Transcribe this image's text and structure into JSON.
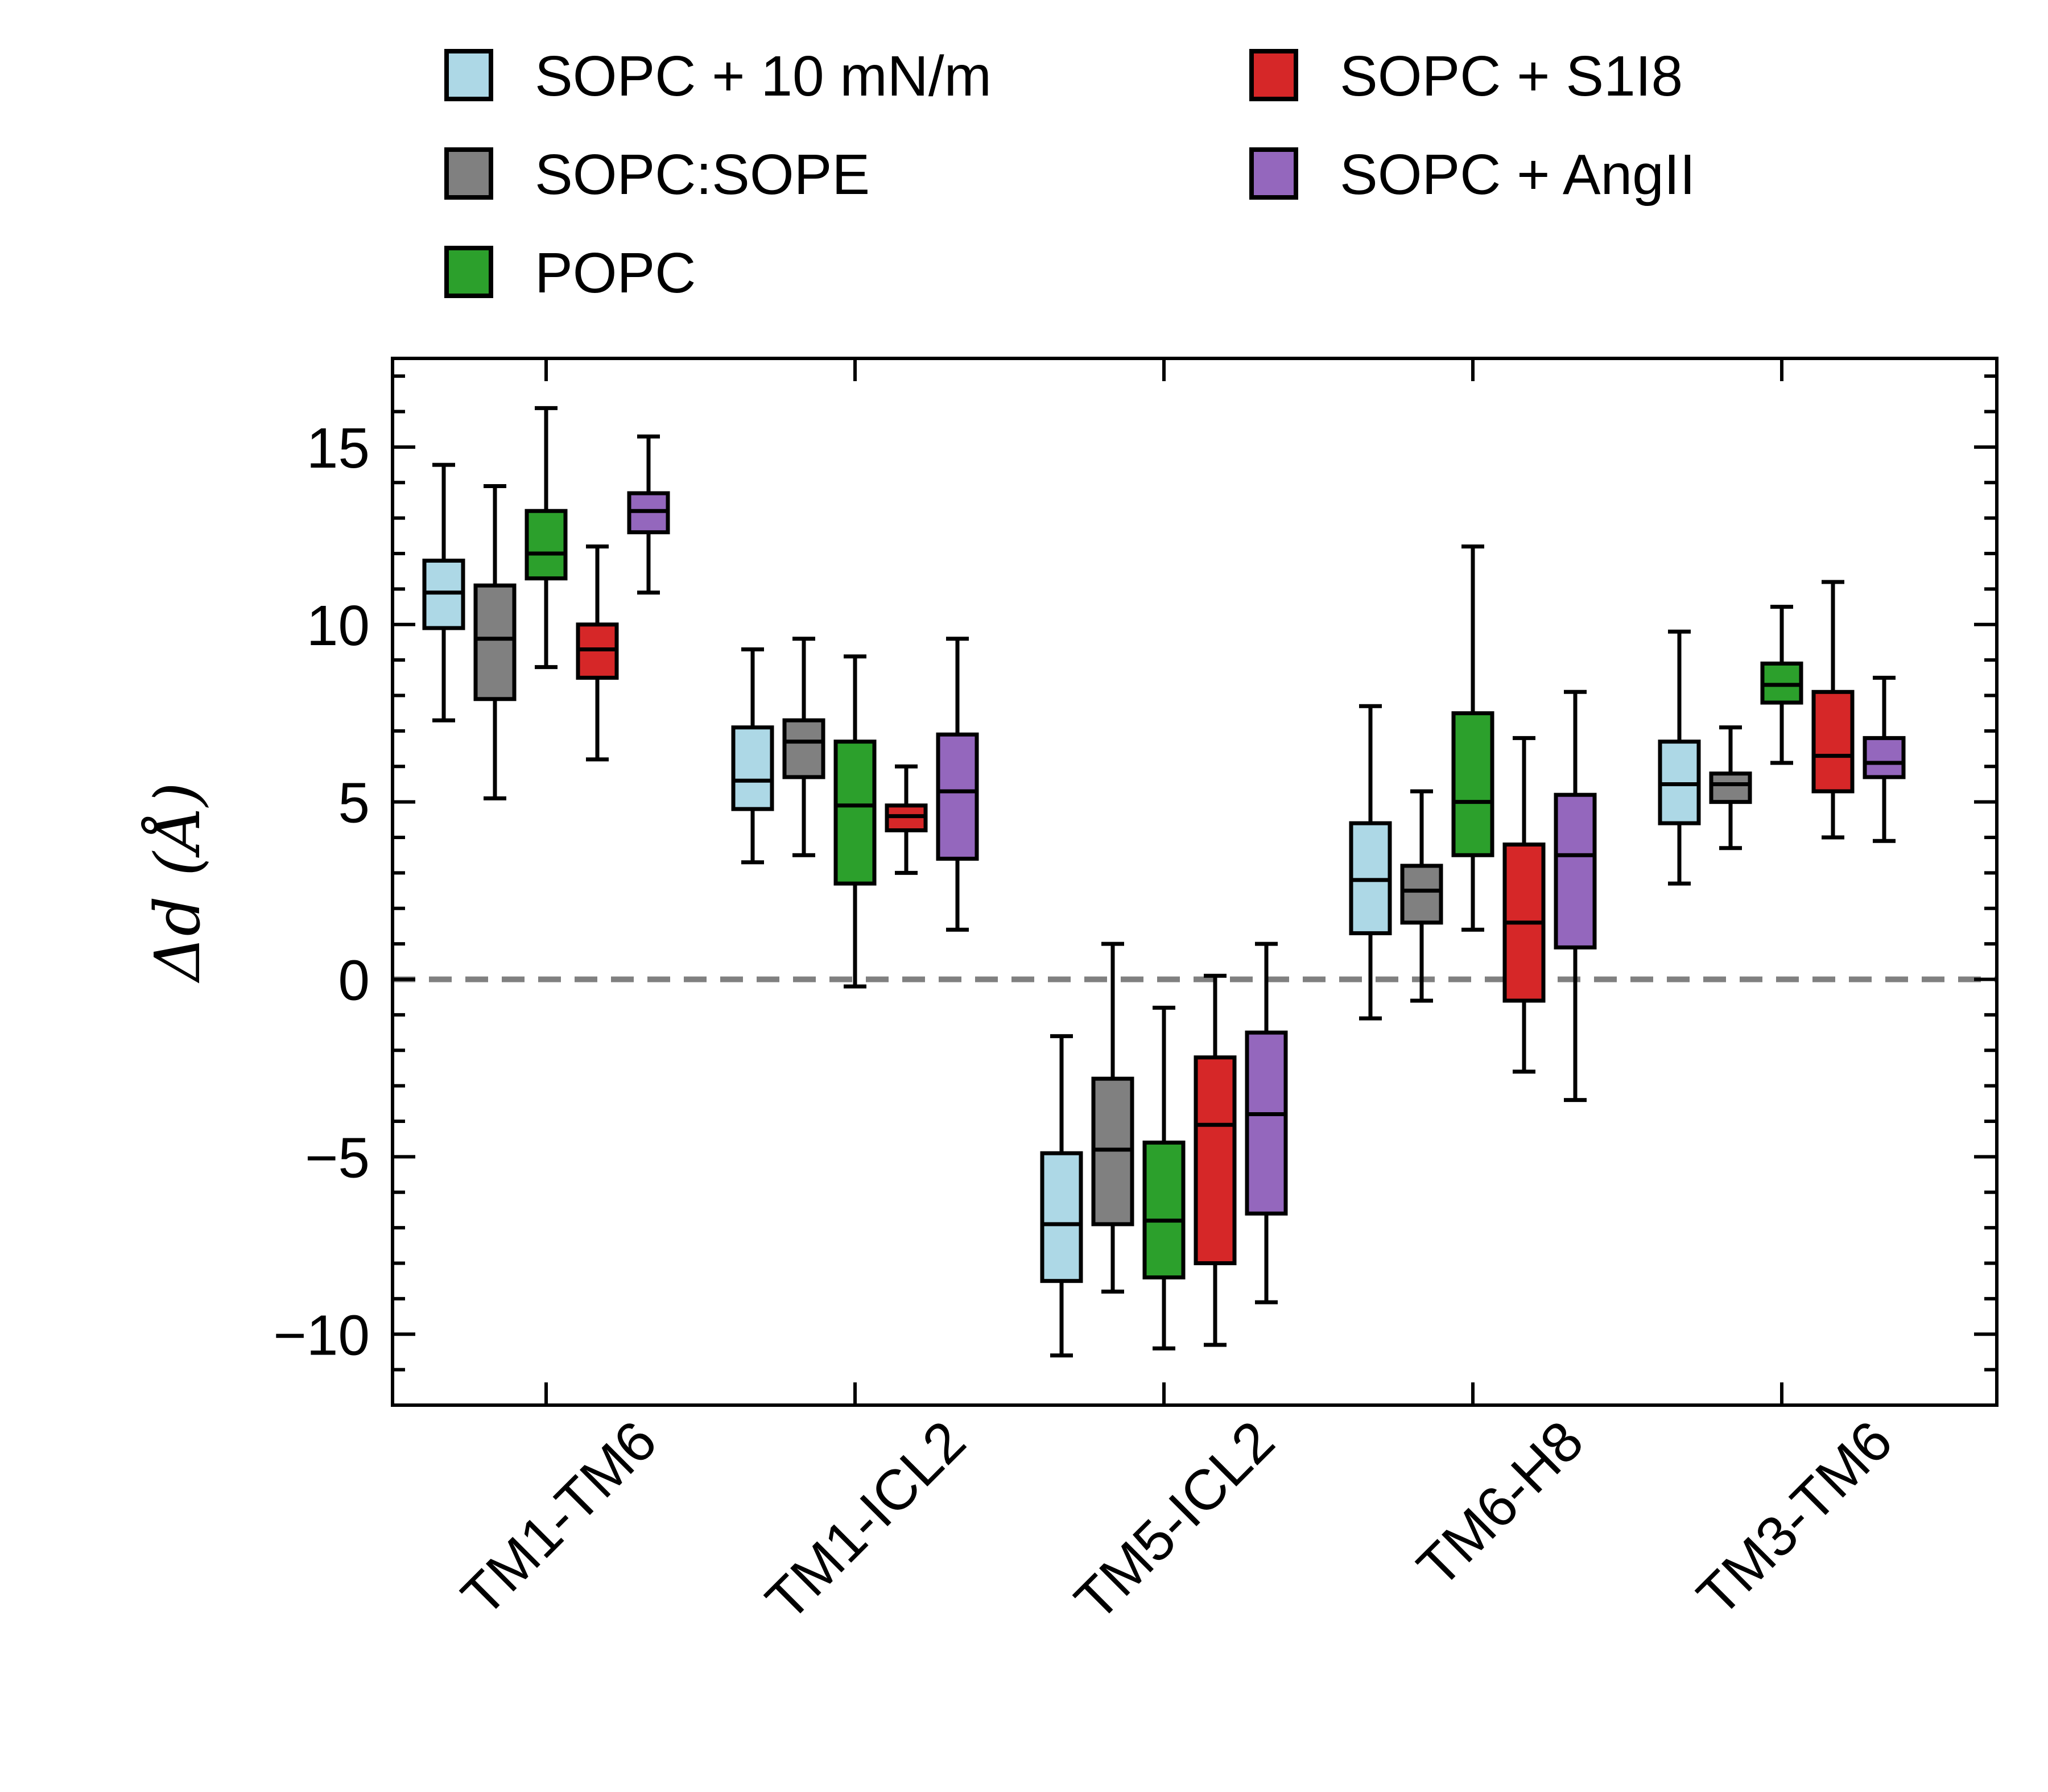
{
  "chart_data": {
    "type": "box",
    "title": "",
    "xlabel": "",
    "ylabel": "Δd (Å)",
    "ylim": [
      -12,
      17.5
    ],
    "yticks": [
      -10,
      -5,
      0,
      5,
      10,
      15
    ],
    "ytick_labels": [
      "−10",
      "−5",
      "0",
      "5",
      "10",
      "15"
    ],
    "reference_line": {
      "y": 0,
      "style": "dashed",
      "color": "#808080"
    },
    "categories": [
      "TM1-TM6",
      "TM1-ICL2",
      "TM5-ICL2",
      "TM6-H8",
      "TM3-TM6"
    ],
    "legend": {
      "placement": "top",
      "columns": 2
    },
    "series": [
      {
        "name": "SOPC + 10 mN/m",
        "color": "#add8e6",
        "boxes": [
          {
            "whisker_low": 7.3,
            "q1": 9.9,
            "median": 10.9,
            "q3": 11.8,
            "whisker_high": 14.5
          },
          {
            "whisker_low": 3.3,
            "q1": 4.8,
            "median": 5.6,
            "q3": 7.1,
            "whisker_high": 9.3
          },
          {
            "whisker_low": -10.6,
            "q1": -8.5,
            "median": -6.9,
            "q3": -4.9,
            "whisker_high": -1.6
          },
          {
            "whisker_low": -1.1,
            "q1": 1.3,
            "median": 2.8,
            "q3": 4.4,
            "whisker_high": 7.7
          },
          {
            "whisker_low": 2.7,
            "q1": 4.4,
            "median": 5.5,
            "q3": 6.7,
            "whisker_high": 9.8
          }
        ]
      },
      {
        "name": "SOPC:SOPE",
        "color": "#808080",
        "boxes": [
          {
            "whisker_low": 5.1,
            "q1": 7.9,
            "median": 9.6,
            "q3": 11.1,
            "whisker_high": 13.9
          },
          {
            "whisker_low": 3.5,
            "q1": 5.7,
            "median": 6.7,
            "q3": 7.3,
            "whisker_high": 9.6
          },
          {
            "whisker_low": -8.8,
            "q1": -6.9,
            "median": -4.8,
            "q3": -2.8,
            "whisker_high": 1.0
          },
          {
            "whisker_low": -0.6,
            "q1": 1.6,
            "median": 2.5,
            "q3": 3.2,
            "whisker_high": 5.3
          },
          {
            "whisker_low": 3.7,
            "q1": 5.0,
            "median": 5.5,
            "q3": 5.8,
            "whisker_high": 7.1
          }
        ]
      },
      {
        "name": "POPC",
        "color": "#2ca02c",
        "boxes": [
          {
            "whisker_low": 8.8,
            "q1": 11.3,
            "median": 12.0,
            "q3": 13.2,
            "whisker_high": 16.1
          },
          {
            "whisker_low": -0.2,
            "q1": 2.7,
            "median": 4.9,
            "q3": 6.7,
            "whisker_high": 9.1
          },
          {
            "whisker_low": -10.4,
            "q1": -8.4,
            "median": -6.8,
            "q3": -4.6,
            "whisker_high": -0.8
          },
          {
            "whisker_low": 1.4,
            "q1": 3.5,
            "median": 5.0,
            "q3": 7.5,
            "whisker_high": 12.2
          },
          {
            "whisker_low": 6.1,
            "q1": 7.8,
            "median": 8.3,
            "q3": 8.9,
            "whisker_high": 10.5
          }
        ]
      },
      {
        "name": "SOPC + S1I8",
        "color": "#d62728",
        "boxes": [
          {
            "whisker_low": 6.2,
            "q1": 8.5,
            "median": 9.3,
            "q3": 10.0,
            "whisker_high": 12.2
          },
          {
            "whisker_low": 3.0,
            "q1": 4.2,
            "median": 4.6,
            "q3": 4.9,
            "whisker_high": 6.0
          },
          {
            "whisker_low": -10.3,
            "q1": -8.0,
            "median": -4.1,
            "q3": -2.2,
            "whisker_high": 0.1
          },
          {
            "whisker_low": -2.6,
            "q1": -0.6,
            "median": 1.6,
            "q3": 3.8,
            "whisker_high": 6.8
          },
          {
            "whisker_low": 4.0,
            "q1": 5.3,
            "median": 6.3,
            "q3": 8.1,
            "whisker_high": 11.2
          }
        ]
      },
      {
        "name": "SOPC + AngII",
        "color": "#9467bd",
        "boxes": [
          {
            "whisker_low": 10.9,
            "q1": 12.6,
            "median": 13.2,
            "q3": 13.7,
            "whisker_high": 15.3
          },
          {
            "whisker_low": 1.4,
            "q1": 3.4,
            "median": 5.3,
            "q3": 6.9,
            "whisker_high": 9.6
          },
          {
            "whisker_low": -9.1,
            "q1": -6.6,
            "median": -3.8,
            "q3": -1.5,
            "whisker_high": 1.0
          },
          {
            "whisker_low": -3.4,
            "q1": 0.9,
            "median": 3.5,
            "q3": 5.2,
            "whisker_high": 8.1
          },
          {
            "whisker_low": 3.9,
            "q1": 5.7,
            "median": 6.1,
            "q3": 6.8,
            "whisker_high": 8.5
          }
        ]
      }
    ]
  }
}
